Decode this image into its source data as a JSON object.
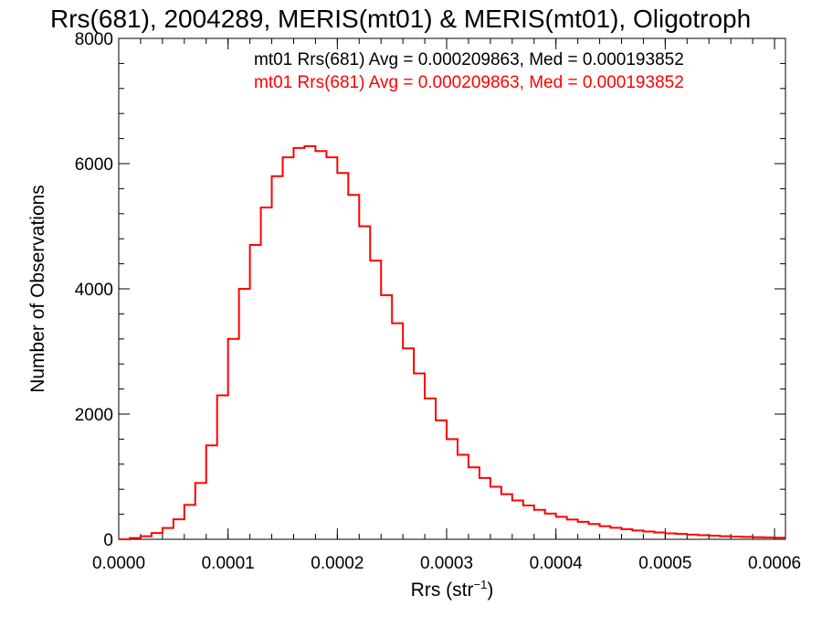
{
  "chart_data": {
    "type": "line",
    "title": "Rrs(681), 2004289, MERIS(mt01) & MERIS(mt01), Oligotroph",
    "xlabel_main": "Rrs (str",
    "xlabel_sup": "−1",
    "xlabel_close": ")",
    "ylabel": "Number of Observations",
    "xlim": [
      0.0,
      0.00061
    ],
    "ylim": [
      0,
      8000
    ],
    "x_ticks": [
      "0.0000",
      "0.0001",
      "0.0002",
      "0.0003",
      "0.0004",
      "0.0005",
      "0.0006"
    ],
    "x_tick_values": [
      0.0,
      0.0001,
      0.0002,
      0.0003,
      0.0004,
      0.0005,
      0.0006
    ],
    "y_ticks": [
      "0",
      "2000",
      "4000",
      "6000",
      "8000"
    ],
    "y_tick_values": [
      0,
      2000,
      4000,
      6000,
      8000
    ],
    "grid": false,
    "legend": [
      {
        "text": "mt01 Rrs(681) Avg = 0.000209863, Med = 0.000193852",
        "color": "#000000"
      },
      {
        "text": "mt01 Rrs(681) Avg = 0.000209863, Med = 0.000193852",
        "color": "#ff0000"
      }
    ],
    "series": [
      {
        "color": "#ff0000",
        "step": true,
        "x": [
          0.0,
          1e-05,
          2e-05,
          3e-05,
          4e-05,
          5e-05,
          6e-05,
          7e-05,
          8e-05,
          9e-05,
          0.0001,
          0.00011,
          0.00012,
          0.00013,
          0.00014,
          0.00015,
          0.00016,
          0.00017,
          0.00018,
          0.00019,
          0.0002,
          0.00021,
          0.00022,
          0.00023,
          0.00024,
          0.00025,
          0.00026,
          0.00027,
          0.00028,
          0.00029,
          0.0003,
          0.00031,
          0.00032,
          0.00033,
          0.00034,
          0.00035,
          0.00036,
          0.00037,
          0.00038,
          0.00039,
          0.0004,
          0.00041,
          0.00042,
          0.00043,
          0.00044,
          0.00045,
          0.00046,
          0.00047,
          0.00048,
          0.00049,
          0.0005,
          0.00051,
          0.00052,
          0.00053,
          0.00054,
          0.00055,
          0.00056,
          0.00057,
          0.00058,
          0.00059,
          0.0006
        ],
        "y": [
          0,
          20,
          50,
          100,
          180,
          320,
          550,
          900,
          1500,
          2300,
          3200,
          4000,
          4700,
          5300,
          5800,
          6100,
          6250,
          6280,
          6200,
          6100,
          5850,
          5500,
          5000,
          4450,
          3900,
          3450,
          3050,
          2650,
          2250,
          1900,
          1600,
          1350,
          1150,
          980,
          840,
          720,
          620,
          540,
          470,
          410,
          360,
          315,
          280,
          245,
          210,
          185,
          160,
          140,
          125,
          110,
          95,
          85,
          75,
          65,
          58,
          50,
          44,
          38,
          33,
          29,
          25
        ]
      }
    ]
  }
}
